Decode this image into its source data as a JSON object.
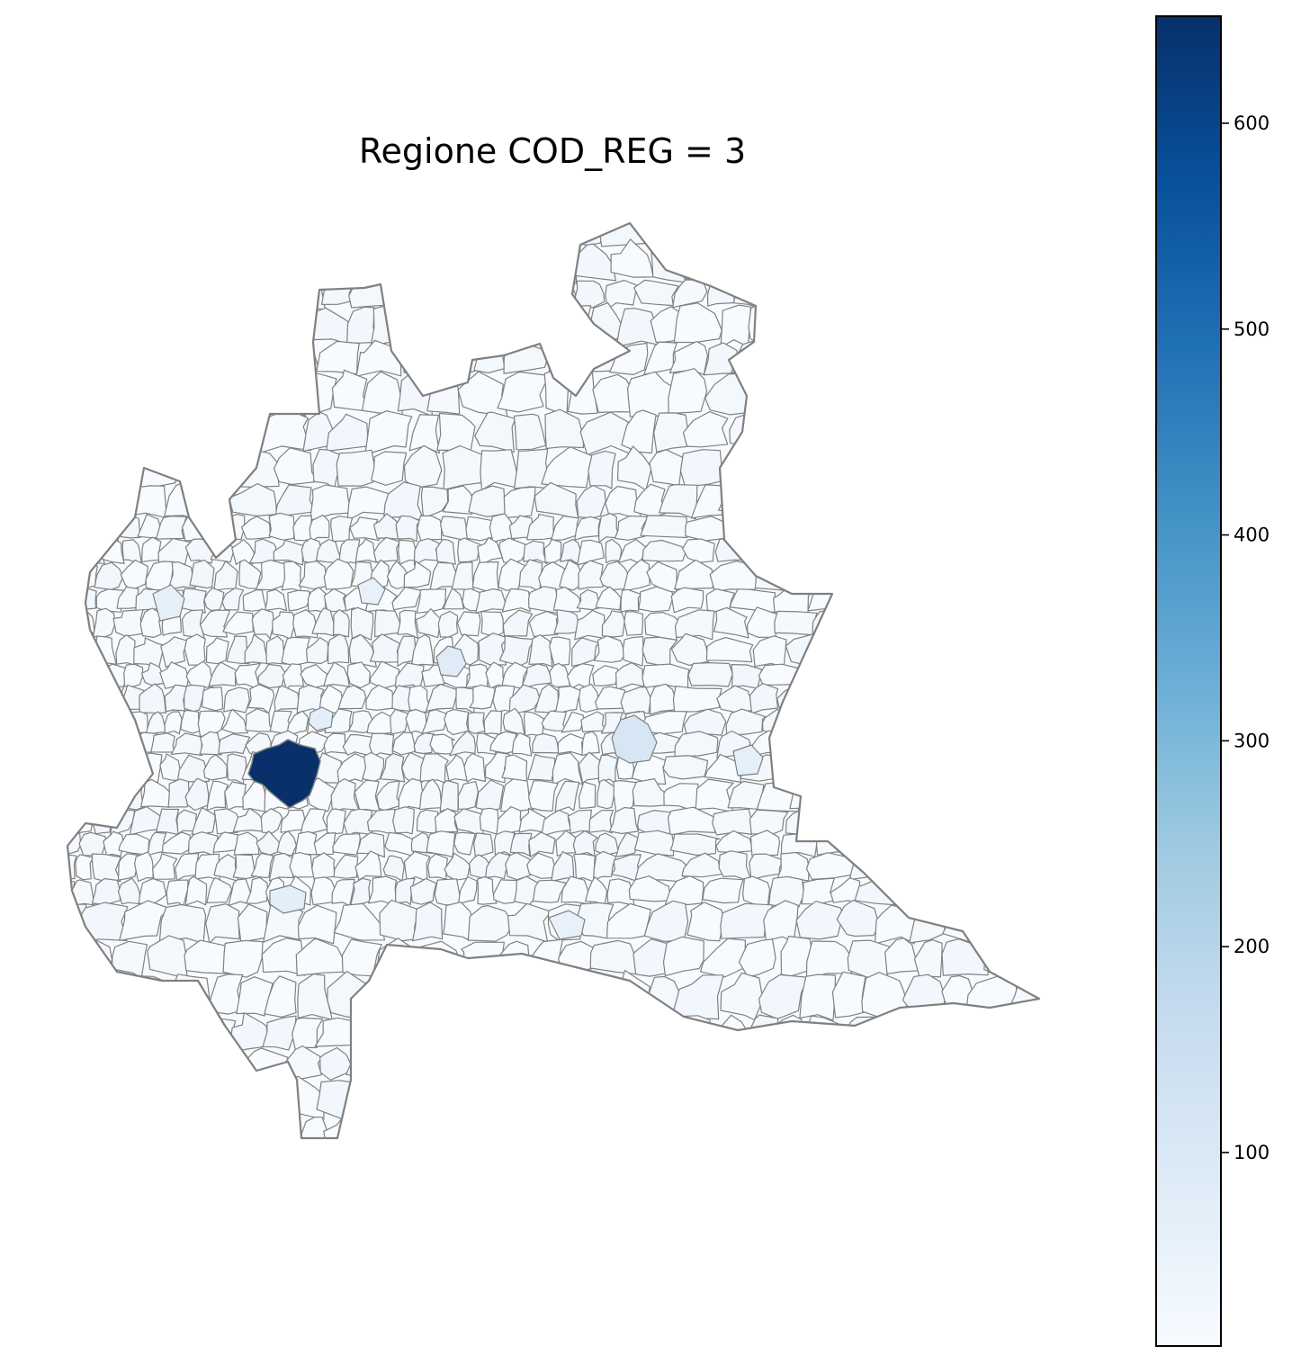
{
  "map": {
    "title": "Regione COD_REG = 3",
    "color_scale": "Blues",
    "edge_color": "#808080",
    "highlight": {
      "milano": 652,
      "brescia": 90,
      "bergamo": 55,
      "monza": 50,
      "pavia": 45,
      "cremona": 40,
      "varese": 42,
      "como": 38
    }
  },
  "colorbar": {
    "min": 6,
    "max": 652,
    "ticks": [
      100,
      200,
      300,
      400,
      500,
      600
    ],
    "tick_labels": [
      "100",
      "200",
      "300",
      "400",
      "500",
      "600"
    ],
    "colors": [
      "#f7fbff",
      "#deebf7",
      "#c6dbef",
      "#9ecae1",
      "#6baed6",
      "#4292c6",
      "#2171b5",
      "#08519c",
      "#08306b"
    ]
  }
}
